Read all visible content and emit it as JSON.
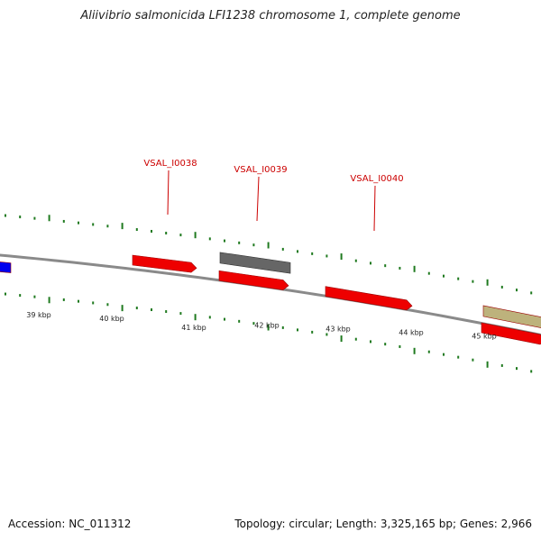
{
  "title": "Aliivibrio salmonicida LFI1238 chromosome 1, complete genome",
  "footer": {
    "accession": "Accession: NC_011312",
    "summary": "Topology: circular; Length: 3,325,165 bp; Genes: 2,966"
  },
  "colors": {
    "background": "#ffffff",
    "backbone": "#8a8a8a",
    "tick": "#1f7a1f",
    "gene_forward": "#ee0000",
    "gene_gray": "#666666",
    "gene_tan": "#bdb27c",
    "gene_blue": "#0000ee",
    "gene_label": "#cc0000",
    "tick_label": "#222222"
  },
  "scale_labels": [
    "39 kbp",
    "40 kbp",
    "41 kbp",
    "42 kbp",
    "43 kbp",
    "44 kbp",
    "45 kbp"
  ],
  "gene_labels": [
    "VSAL_I0038",
    "VSAL_I0039",
    "VSAL_I0040"
  ],
  "features": [
    {
      "kind": "blue",
      "color_key": "gene_blue"
    },
    {
      "kind": "red",
      "color_key": "gene_forward"
    },
    {
      "kind": "gray",
      "color_key": "gene_gray"
    },
    {
      "kind": "red",
      "color_key": "gene_forward"
    },
    {
      "kind": "red",
      "color_key": "gene_forward"
    },
    {
      "kind": "tan",
      "color_key": "gene_tan"
    },
    {
      "kind": "red",
      "color_key": "gene_forward"
    }
  ]
}
